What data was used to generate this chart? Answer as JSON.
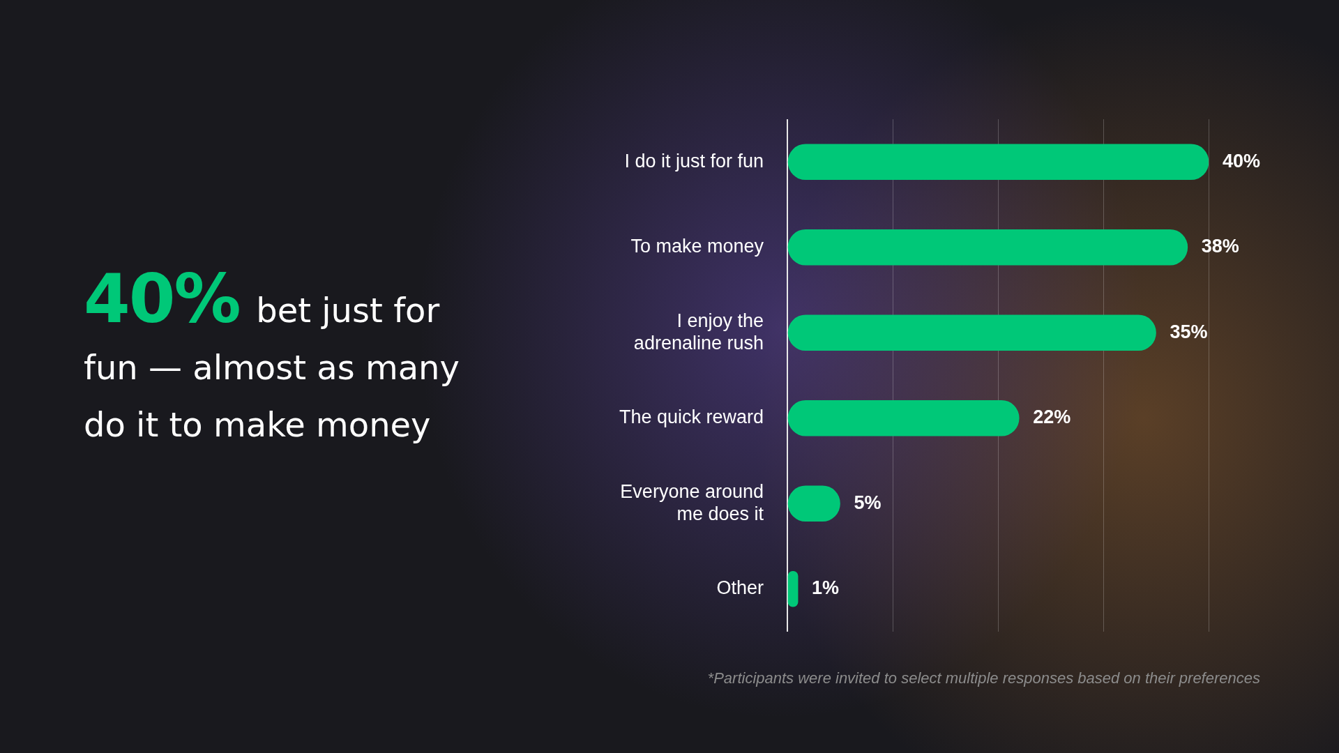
{
  "chart_data": {
    "type": "bar",
    "orientation": "horizontal",
    "title": "40% bet just for fun — almost as many do it to make money",
    "categories": [
      "I do it just for fun",
      "To make money",
      "I enjoy the adrenaline rush",
      "The quick reward",
      "Everyone around me does it",
      "Other"
    ],
    "values": [
      40,
      38,
      35,
      22,
      5,
      1
    ],
    "value_labels": [
      "40%",
      "38%",
      "35%",
      "22%",
      "5%",
      "1%"
    ],
    "color": "#00c878",
    "xlim": [
      0,
      40
    ],
    "xticks": [
      {
        "value": 0,
        "label": null
      },
      {
        "value": 10,
        "label": null
      },
      {
        "value": 20,
        "label": null
      },
      {
        "value": 30,
        "label": null
      },
      {
        "value": 40,
        "label": null
      }
    ],
    "grid": "x",
    "tick_labels": "y",
    "annotations": [
      "*Participants were invited to select multiple responses based on their preferences"
    ]
  }
}
